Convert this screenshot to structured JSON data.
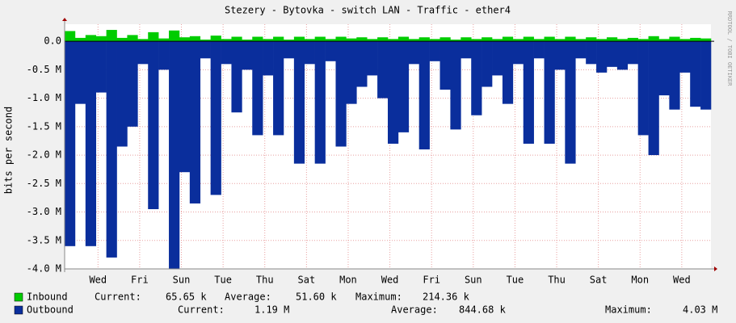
{
  "chart_data": {
    "type": "bar",
    "title": "Stezery - Bytovka - switch LAN - Traffic - ether4",
    "y_label": "bits per second",
    "side_text": "RRDTOOL / TOBI OETIKER",
    "grid": true,
    "xlim": [
      0,
      31
    ],
    "xticks": [
      {
        "value": 1.6,
        "label": "Wed"
      },
      {
        "value": 3.6,
        "label": "Fri"
      },
      {
        "value": 5.6,
        "label": "Sun"
      },
      {
        "value": 7.6,
        "label": "Tue"
      },
      {
        "value": 9.6,
        "label": "Thu"
      },
      {
        "value": 11.6,
        "label": "Sat"
      },
      {
        "value": 13.6,
        "label": "Mon"
      },
      {
        "value": 15.6,
        "label": "Wed"
      },
      {
        "value": 17.6,
        "label": "Fri"
      },
      {
        "value": 19.6,
        "label": "Sun"
      },
      {
        "value": 21.6,
        "label": "Tue"
      },
      {
        "value": 23.6,
        "label": "Thu"
      },
      {
        "value": 25.6,
        "label": "Sat"
      },
      {
        "value": 27.6,
        "label": "Mon"
      },
      {
        "value": 29.6,
        "label": "Wed"
      }
    ],
    "ylim": [
      -4000000,
      300000
    ],
    "yticks": [
      {
        "value": 0,
        "label": "0.0"
      },
      {
        "value": -500000,
        "label": "-0.5 M"
      },
      {
        "value": -1000000,
        "label": "-1.0 M"
      },
      {
        "value": -1500000,
        "label": "-1.5 M"
      },
      {
        "value": -2000000,
        "label": "-2.0 M"
      },
      {
        "value": -2500000,
        "label": "-2.5 M"
      },
      {
        "value": -3000000,
        "label": "-3.0 M"
      },
      {
        "value": -3500000,
        "label": "-3.5 M"
      },
      {
        "value": -4000000,
        "label": "-4.0 M"
      }
    ],
    "x": [
      0,
      0.5,
      1,
      1.5,
      2,
      2.5,
      3,
      3.5,
      4,
      4.5,
      5,
      5.5,
      6,
      6.5,
      7,
      7.5,
      8,
      8.5,
      9,
      9.5,
      10,
      10.5,
      11,
      11.5,
      12,
      12.5,
      13,
      13.5,
      14,
      14.5,
      15,
      15.5,
      16,
      16.5,
      17,
      17.5,
      18,
      18.5,
      19,
      19.5,
      20,
      20.5,
      21,
      21.5,
      22,
      22.5,
      23,
      23.5,
      24,
      24.5,
      25,
      25.5,
      26,
      26.5,
      27,
      27.5,
      28,
      28.5,
      29,
      29.5,
      30,
      30.5
    ],
    "series": [
      {
        "name": "Inbound",
        "color": "#00cc00",
        "values": [
          180000,
          60000,
          110000,
          90000,
          200000,
          60000,
          110000,
          40000,
          160000,
          50000,
          190000,
          70000,
          90000,
          30000,
          100000,
          40000,
          80000,
          30000,
          80000,
          40000,
          80000,
          30000,
          80000,
          40000,
          80000,
          40000,
          80000,
          50000,
          70000,
          40000,
          70000,
          40000,
          80000,
          40000,
          70000,
          40000,
          70000,
          30000,
          70000,
          40000,
          70000,
          40000,
          80000,
          40000,
          80000,
          40000,
          80000,
          40000,
          80000,
          40000,
          70000,
          40000,
          70000,
          40000,
          60000,
          40000,
          90000,
          40000,
          80000,
          40000,
          60000,
          50000
        ],
        "stats": [
          {
            "label": "Current:",
            "value": "65.65 k"
          },
          {
            "label": "Average:",
            "value": "51.60 k"
          },
          {
            "label": "Maximum:",
            "value": "214.36 k"
          }
        ]
      },
      {
        "name": "Outbound",
        "color": "#0a2e9c",
        "values": [
          -3600000,
          -1100000,
          -3600000,
          -900000,
          -3800000,
          -1850000,
          -1500000,
          -400000,
          -2950000,
          -500000,
          -4000000,
          -2300000,
          -2850000,
          -300000,
          -2700000,
          -400000,
          -1250000,
          -500000,
          -1650000,
          -600000,
          -1650000,
          -300000,
          -2150000,
          -400000,
          -2150000,
          -350000,
          -1850000,
          -1100000,
          -800000,
          -600000,
          -1000000,
          -1800000,
          -1600000,
          -400000,
          -1900000,
          -350000,
          -850000,
          -1550000,
          -300000,
          -1300000,
          -800000,
          -600000,
          -1100000,
          -400000,
          -1800000,
          -300000,
          -1800000,
          -500000,
          -2150000,
          -300000,
          -400000,
          -550000,
          -450000,
          -500000,
          -400000,
          -1650000,
          -2000000,
          -950000,
          -1200000,
          -550000,
          -1150000,
          -1200000
        ],
        "stats": [
          {
            "label": "Current:",
            "value": "1.19 M"
          },
          {
            "label": "Average:",
            "value": "844.68 k"
          },
          {
            "label": "Maximum:",
            "value": "4.03 M"
          }
        ]
      }
    ]
  }
}
